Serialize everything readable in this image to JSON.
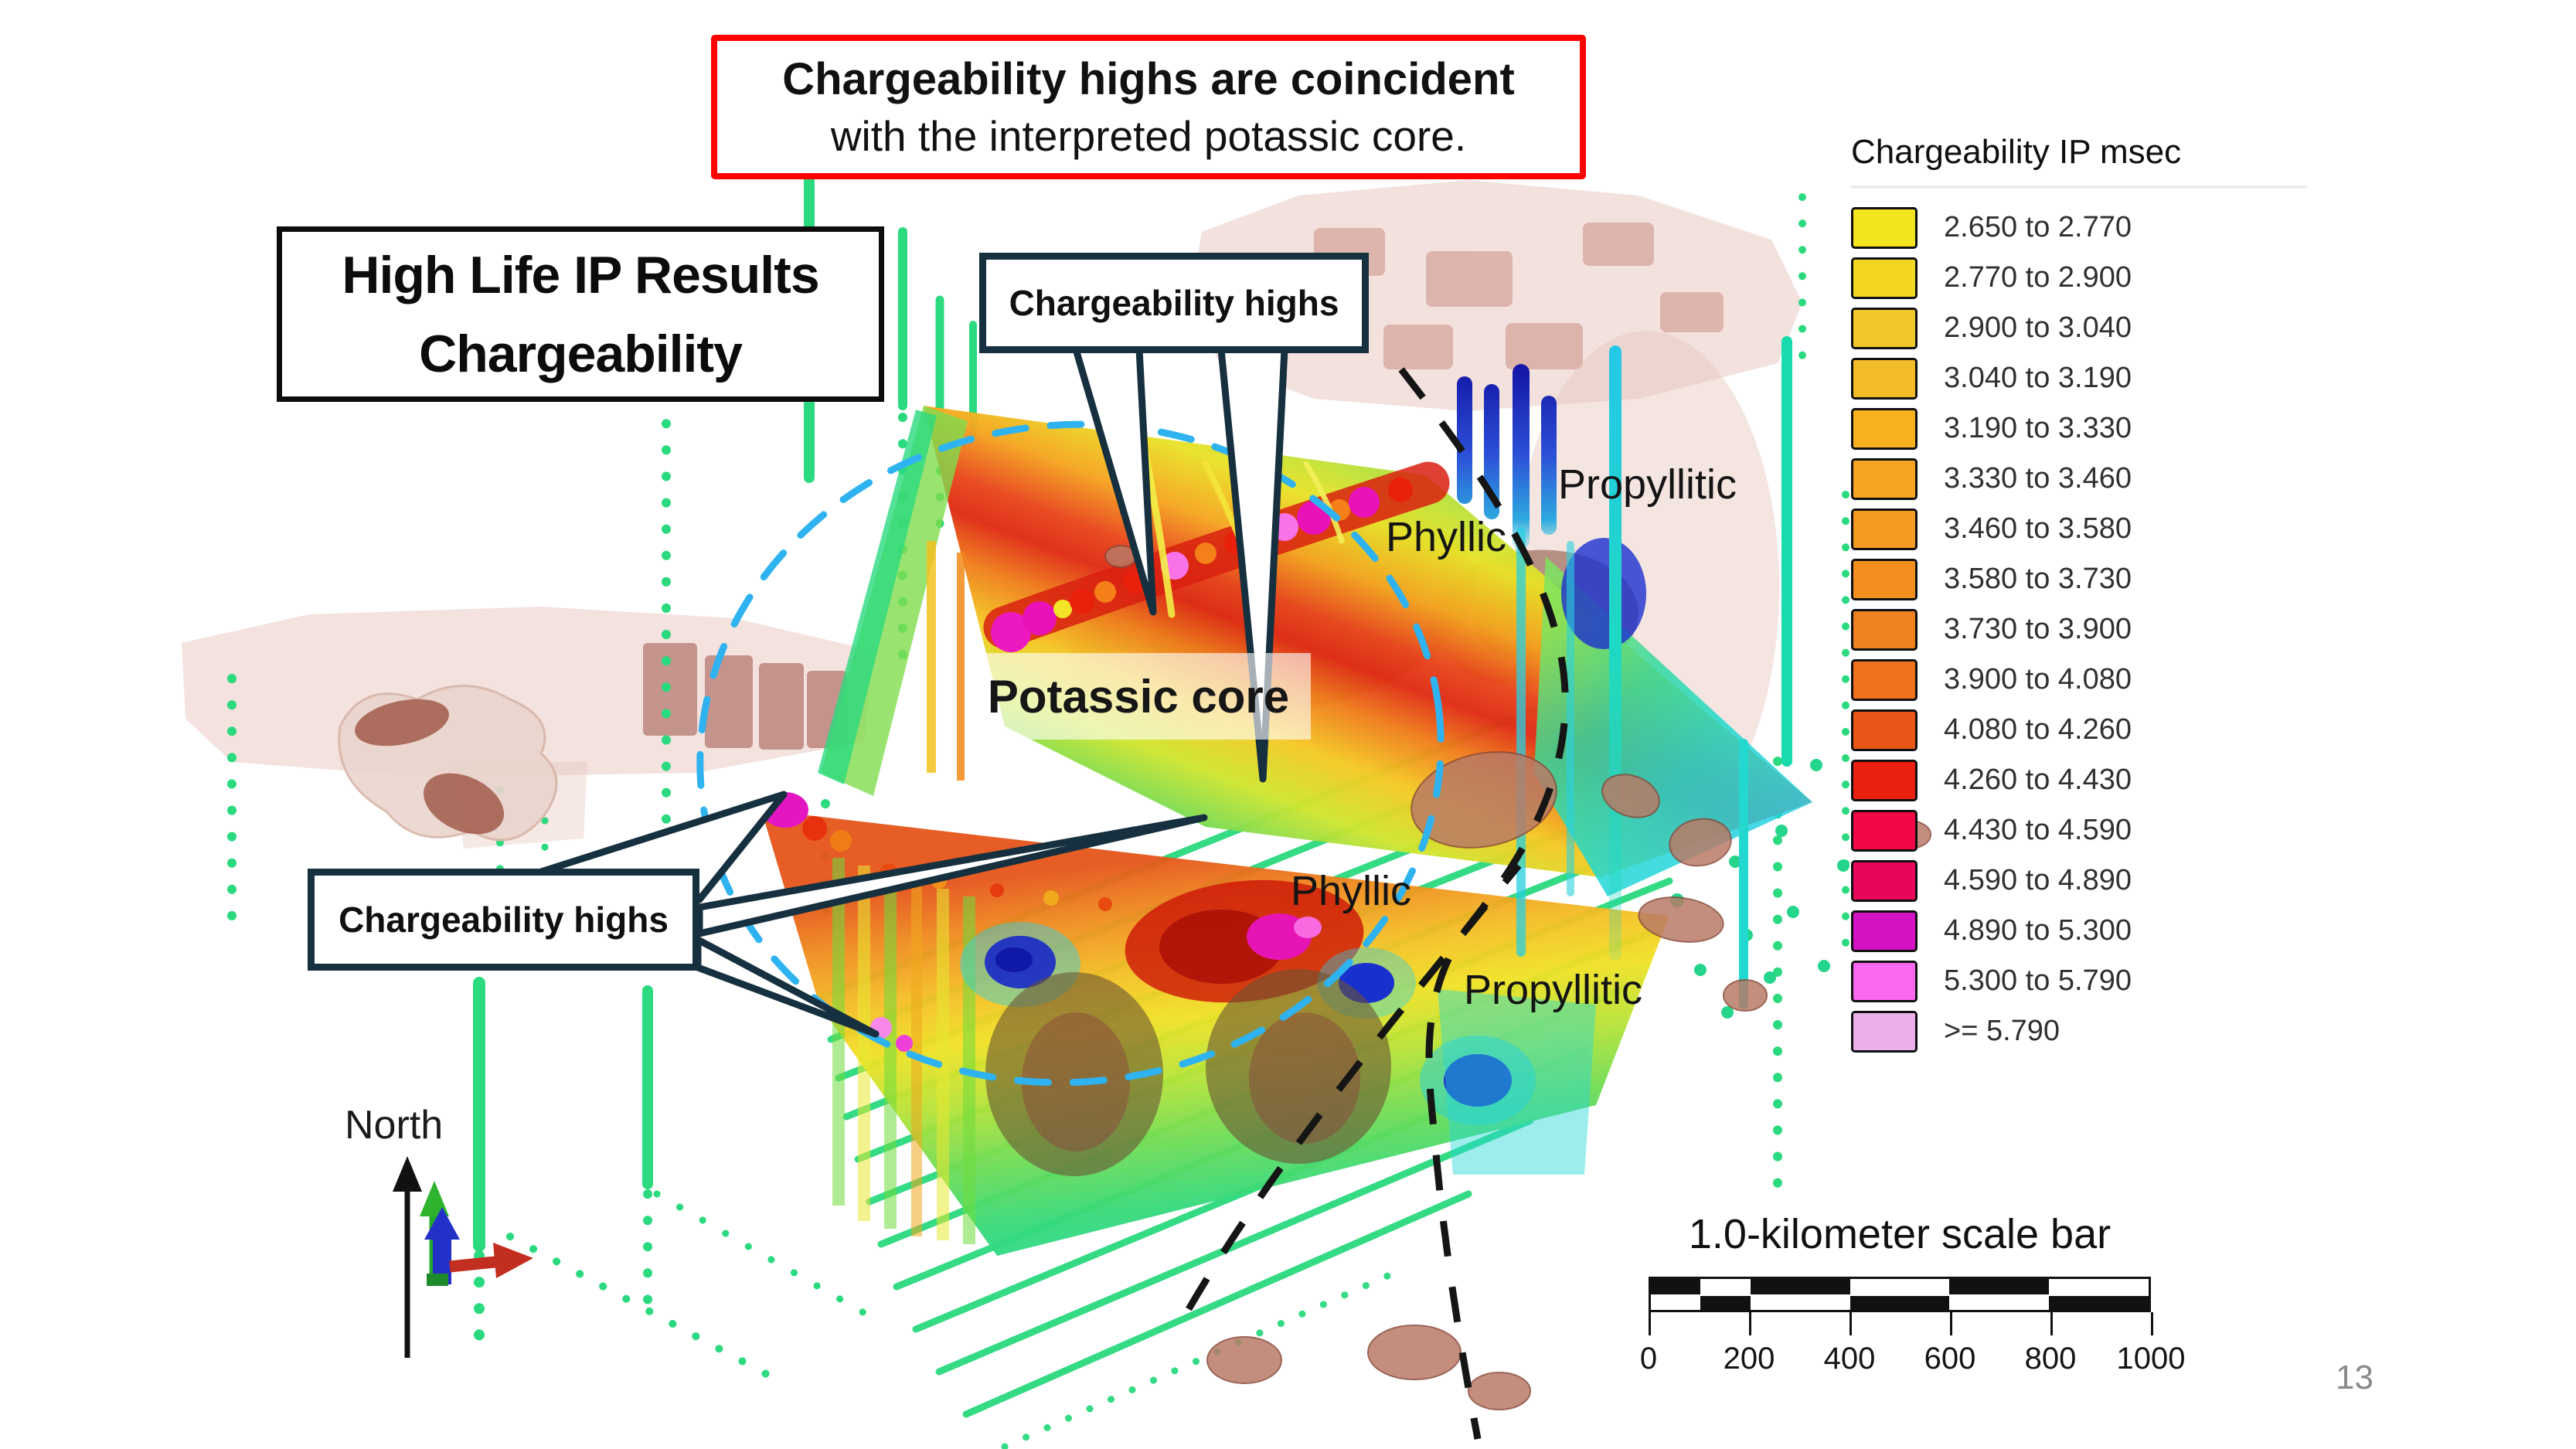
{
  "slide": {
    "page_number": "13",
    "banner": {
      "line1": "Chargeability highs are coincident",
      "line2": "with the interpreted potassic core.",
      "border_color": "#FE0000"
    },
    "title_box": {
      "line1": "High Life IP Results",
      "line2": "Chargeability"
    },
    "callout_top": {
      "label": "Chargeability highs"
    },
    "callout_left": {
      "label": "Chargeability highs"
    },
    "zone_labels": {
      "potassic_core": "Potassic core",
      "phyllic_upper": "Phyllic",
      "propyllitic_upper": "Propyllitic",
      "phyllic_lower": "Phyllic",
      "propyllitic_lower": "Propyllitic"
    },
    "north_label": "North",
    "legend": {
      "title": "Chargeability IP msec",
      "entries": [
        {
          "range": "2.650 to 2.770",
          "color": "#F2E41F"
        },
        {
          "range": "2.770 to 2.900",
          "color": "#F3D622"
        },
        {
          "range": "2.900 to 3.040",
          "color": "#F1C829"
        },
        {
          "range": "3.040 to 3.190",
          "color": "#F4BB28"
        },
        {
          "range": "3.190 to 3.330",
          "color": "#F7B01E"
        },
        {
          "range": "3.330 to 3.460",
          "color": "#F7A424"
        },
        {
          "range": "3.460 to 3.580",
          "color": "#F49A20"
        },
        {
          "range": "3.580 to 3.730",
          "color": "#F28F1E"
        },
        {
          "range": "3.730 to 3.900",
          "color": "#EE8220"
        },
        {
          "range": "3.900 to 4.080",
          "color": "#EF711D"
        },
        {
          "range": "4.080 to 4.260",
          "color": "#EA5617"
        },
        {
          "range": "4.260 to 4.430",
          "color": "#EC2010"
        },
        {
          "range": "4.430 to 4.590",
          "color": "#F30747"
        },
        {
          "range": "4.590 to 4.890",
          "color": "#E9055C"
        },
        {
          "range": "4.890 to 5.300",
          "color": "#D414C4"
        },
        {
          "range": "5.300 to 5.790",
          "color": "#F968EF"
        },
        {
          "range": ">= 5.790",
          "color": "#EBB0E9"
        }
      ]
    },
    "scale_bar": {
      "title": "1.0-kilometer scale bar",
      "tick_labels": [
        "0",
        "200",
        "400",
        "600",
        "800",
        "1000"
      ],
      "interval_boundaries": [
        0,
        100,
        200,
        400,
        600,
        800,
        1000
      ]
    },
    "scene_colors": {
      "core_outline": "#2FB3F0",
      "zone_boundary": "#151515",
      "drillhole_green": "#2BD97E",
      "callout_border": "#16303F"
    }
  }
}
